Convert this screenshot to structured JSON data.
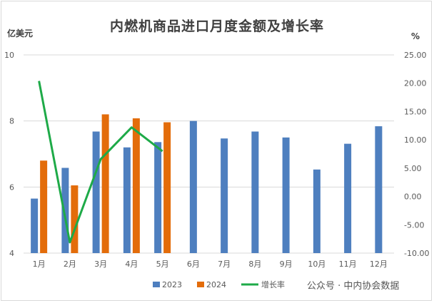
{
  "chart_data": {
    "type": "bar",
    "title": "内燃机商品进口月度金额及增长率",
    "left_axis_unit": "亿美元",
    "right_axis_unit": "%",
    "categories": [
      "1月",
      "2月",
      "3月",
      "4月",
      "5月",
      "6月",
      "7月",
      "8月",
      "9月",
      "10月",
      "11月",
      "12月"
    ],
    "left_ticks": [
      "4",
      "6",
      "8",
      "10"
    ],
    "right_ticks": [
      "-10.00",
      "-5.00",
      "0.00",
      "5.00",
      "10.00",
      "15.00",
      "20.00",
      "25.00"
    ],
    "ylim_left": [
      4,
      10
    ],
    "ylim_right": [
      -10,
      25
    ],
    "series": [
      {
        "name": "2023",
        "axis": "left",
        "kind": "bar",
        "color": "#4e7fbf",
        "values": [
          5.65,
          6.58,
          7.68,
          7.2,
          7.36,
          8.0,
          7.47,
          7.68,
          7.5,
          6.53,
          7.31,
          7.84
        ]
      },
      {
        "name": "2024",
        "axis": "left",
        "kind": "bar",
        "color": "#e36c0a",
        "values": [
          6.8,
          6.05,
          8.2,
          8.08,
          7.96,
          null,
          null,
          null,
          null,
          null,
          null,
          null
        ]
      },
      {
        "name": "增长率",
        "axis": "right",
        "kind": "line",
        "color": "#1eaa48",
        "values": [
          20.4,
          -8.1,
          6.6,
          12.2,
          8.0,
          null,
          null,
          null,
          null,
          null,
          null,
          null
        ]
      }
    ],
    "legend_position": "bottom",
    "grid": true
  },
  "watermark": "公众号 · 中内协会数据"
}
